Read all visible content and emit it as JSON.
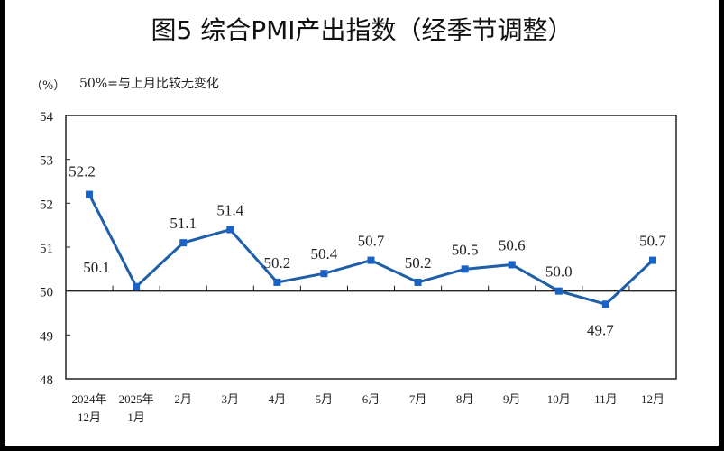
{
  "chart_data": {
    "type": "line",
    "title": "图5  综合PMI产出指数（经季节调整）",
    "ylabel": "（%）",
    "annotation": "50%=与上月比较无变化",
    "categories": [
      [
        "2024年",
        "12月"
      ],
      [
        "2025年",
        "1月"
      ],
      [
        "2月"
      ],
      [
        "3月"
      ],
      [
        "4月"
      ],
      [
        "5月"
      ],
      [
        "6月"
      ],
      [
        "7月"
      ],
      [
        "8月"
      ],
      [
        "9月"
      ],
      [
        "10月"
      ],
      [
        "11月"
      ],
      [
        "12月"
      ]
    ],
    "values": [
      52.2,
      50.1,
      51.1,
      51.4,
      50.2,
      50.4,
      50.7,
      50.2,
      50.5,
      50.6,
      50.0,
      49.7,
      50.7
    ],
    "data_labels": [
      "52.2",
      "50.1",
      "51.1",
      "51.4",
      "50.2",
      "50.4",
      "50.7",
      "50.2",
      "50.5",
      "50.6",
      "50.0",
      "49.7",
      "50.7"
    ],
    "ylim": [
      48,
      54
    ],
    "yticks": [
      48,
      49,
      50,
      51,
      52,
      53,
      54
    ],
    "reference_line": 50,
    "grid": false,
    "line_color": "#1f5fa8",
    "marker": "square"
  }
}
